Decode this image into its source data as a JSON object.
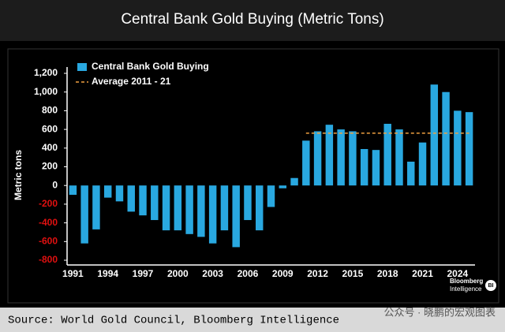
{
  "chart_data": {
    "type": "bar",
    "title": "Central Bank Gold Buying (Metric Tons)",
    "ylabel": "Metric tons",
    "categories": [
      "1991",
      null,
      null,
      "1994",
      null,
      null,
      "1997",
      null,
      null,
      "2000",
      null,
      null,
      "2003",
      null,
      null,
      "2006",
      null,
      null,
      "2009",
      null,
      null,
      "2012",
      null,
      null,
      "2015",
      null,
      null,
      "2018",
      null,
      null,
      "2021",
      null,
      null,
      "2024",
      null
    ],
    "series": [
      {
        "name": "Central Bank Gold Buying",
        "color": "#29a8e0",
        "type": "bar",
        "values": [
          -100,
          -620,
          -470,
          -130,
          -170,
          -280,
          -320,
          -370,
          -480,
          -480,
          -520,
          -550,
          -620,
          -480,
          -660,
          -370,
          -480,
          -230,
          -30,
          80,
          480,
          580,
          650,
          600,
          580,
          390,
          380,
          660,
          600,
          255,
          460,
          1080,
          1000,
          800,
          785
        ]
      },
      {
        "name": "Average 2011 - 21",
        "color": "#f0a040",
        "type": "line",
        "dashed": true,
        "values": [
          null,
          null,
          null,
          null,
          null,
          null,
          null,
          null,
          null,
          null,
          null,
          null,
          null,
          null,
          null,
          null,
          null,
          null,
          null,
          null,
          560,
          560,
          560,
          560,
          560,
          560,
          560,
          560,
          560,
          560,
          560,
          560,
          560,
          560,
          560
        ]
      }
    ],
    "ylim": [
      -800,
      1200
    ],
    "yticks": [
      -800,
      -600,
      -400,
      -200,
      0,
      200,
      400,
      600,
      800,
      {
        "value": 1000,
        "label": "1,000"
      },
      {
        "value": 1200,
        "label": "1,200"
      }
    ],
    "negative_tick_color": "#e01010",
    "legend": "top-left",
    "logo": {
      "line1": "Bloomberg",
      "line2": "Intelligence",
      "badge": "BI"
    },
    "source": "Source: World Gold Council, Bloomberg Intelligence",
    "watermark": "公众号 · 晓鹏的宏观图表"
  }
}
